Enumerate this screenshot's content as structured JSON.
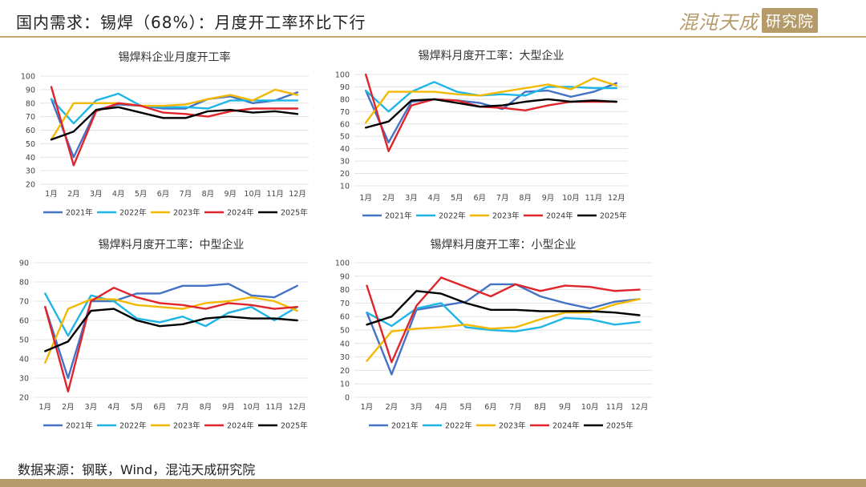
{
  "header": {
    "title": "国内需求：锡焊（68%）：月度开工率环比下行"
  },
  "logo": {
    "brand": "混沌天成",
    "badge": "研究院"
  },
  "footer": {
    "source": "数据来源：钢联，Wind，混沌天成研究院"
  },
  "colors": {
    "2021年": "#4472c4",
    "2022年": "#1fb5e6",
    "2023年": "#f5b800",
    "2024年": "#e0242b",
    "2025年": "#000000"
  },
  "chart_data": [
    {
      "type": "line",
      "title": "锡焊料企业月度开工率",
      "categories": [
        "1月",
        "2月",
        "3月",
        "4月",
        "5月",
        "6月",
        "7月",
        "8月",
        "9月",
        "10月",
        "11月",
        "12月"
      ],
      "ylim": [
        20,
        100
      ],
      "yticks": [
        20,
        30,
        40,
        50,
        60,
        70,
        80,
        90,
        100
      ],
      "series": [
        {
          "name": "2021年",
          "values": [
            83,
            40,
            75,
            79,
            78,
            76,
            76,
            83,
            85,
            80,
            82,
            88
          ]
        },
        {
          "name": "2022年",
          "values": [
            83,
            65,
            82,
            87,
            78,
            77,
            77,
            76,
            82,
            82,
            82,
            82
          ]
        },
        {
          "name": "2023年",
          "values": [
            53,
            80,
            80,
            80,
            78,
            78,
            79,
            83,
            86,
            82,
            90,
            86
          ]
        },
        {
          "name": "2024年",
          "values": [
            92,
            34,
            74,
            80,
            78,
            73,
            72,
            70,
            74,
            76,
            76,
            76
          ]
        },
        {
          "name": "2025年",
          "values": [
            53,
            59,
            75,
            77,
            73,
            69,
            69,
            74,
            75,
            73,
            74,
            72
          ]
        }
      ]
    },
    {
      "type": "line",
      "title": "锡焊料月度开工率：大型企业",
      "categories": [
        "1月",
        "2月",
        "3月",
        "4月",
        "5月",
        "6月",
        "7月",
        "8月",
        "9月",
        "10月",
        "11月",
        "12月"
      ],
      "ylim": [
        10,
        100
      ],
      "yticks": [
        10,
        20,
        30,
        40,
        50,
        60,
        70,
        80,
        90,
        100
      ],
      "series": [
        {
          "name": "2021年",
          "values": [
            87,
            45,
            78,
            80,
            79,
            77,
            72,
            86,
            87,
            82,
            86,
            93
          ]
        },
        {
          "name": "2022年",
          "values": [
            87,
            70,
            86,
            94,
            86,
            83,
            84,
            83,
            90,
            90,
            89,
            89
          ]
        },
        {
          "name": "2023年",
          "values": [
            61,
            86,
            86,
            86,
            84,
            83,
            86,
            89,
            92,
            88,
            97,
            91
          ]
        },
        {
          "name": "2024年",
          "values": [
            100,
            38,
            75,
            80,
            79,
            74,
            73,
            71,
            75,
            78,
            78,
            78
          ]
        },
        {
          "name": "2025年",
          "values": [
            57,
            62,
            79,
            80,
            77,
            74,
            75,
            78,
            80,
            78,
            79,
            78
          ]
        }
      ]
    },
    {
      "type": "line",
      "title": "锡焊料月度开工率：中型企业",
      "categories": [
        "1月",
        "2月",
        "3月",
        "4月",
        "5月",
        "6月",
        "7月",
        "8月",
        "9月",
        "10月",
        "11月",
        "12月"
      ],
      "ylim": [
        20,
        90
      ],
      "yticks": [
        20,
        30,
        40,
        50,
        60,
        70,
        80,
        90
      ],
      "series": [
        {
          "name": "2021年",
          "values": [
            67,
            30,
            70,
            70,
            74,
            74,
            78,
            78,
            79,
            73,
            72,
            78
          ]
        },
        {
          "name": "2022年",
          "values": [
            74,
            52,
            73,
            70,
            61,
            59,
            62,
            57,
            64,
            67,
            60,
            67
          ]
        },
        {
          "name": "2023年",
          "values": [
            38,
            66,
            71,
            71,
            68,
            67,
            66,
            69,
            70,
            72,
            70,
            65
          ]
        },
        {
          "name": "2024年",
          "values": [
            67,
            23,
            70,
            77,
            72,
            69,
            68,
            66,
            69,
            68,
            66,
            67
          ]
        },
        {
          "name": "2025年",
          "values": [
            44,
            49,
            65,
            66,
            60,
            57,
            58,
            61,
            62,
            61,
            61,
            60
          ]
        }
      ]
    },
    {
      "type": "line",
      "title": "锡焊料月度开工率：小型企业",
      "categories": [
        "1月",
        "2月",
        "3月",
        "4月",
        "5月",
        "6月",
        "7月",
        "8月",
        "9月",
        "10月",
        "11月",
        "12月"
      ],
      "ylim": [
        0,
        100
      ],
      "yticks": [
        0,
        10,
        20,
        30,
        40,
        50,
        60,
        70,
        80,
        90,
        100
      ],
      "series": [
        {
          "name": "2021年",
          "values": [
            63,
            17,
            65,
            68,
            71,
            84,
            84,
            75,
            70,
            66,
            71,
            73
          ]
        },
        {
          "name": "2022年",
          "values": [
            63,
            53,
            66,
            70,
            52,
            50,
            49,
            52,
            59,
            58,
            54,
            56
          ]
        },
        {
          "name": "2023年",
          "values": [
            27,
            49,
            51,
            52,
            54,
            51,
            52,
            58,
            63,
            63,
            69,
            73
          ]
        },
        {
          "name": "2024年",
          "values": [
            83,
            26,
            68,
            89,
            82,
            75,
            84,
            79,
            83,
            82,
            79,
            80
          ]
        },
        {
          "name": "2025年",
          "values": [
            54,
            60,
            79,
            77,
            70,
            65,
            65,
            64,
            64,
            64,
            63,
            61
          ]
        }
      ]
    }
  ]
}
